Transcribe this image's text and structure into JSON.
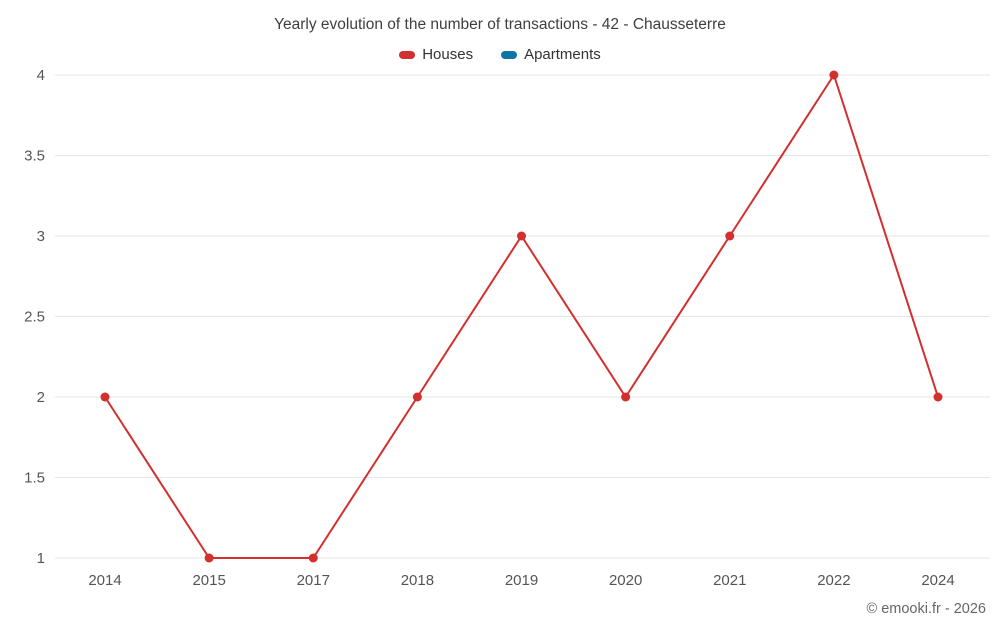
{
  "chart": {
    "footer": "© emooki.fr - 2026"
  },
  "chart_data": {
    "type": "line",
    "title": "Yearly evolution of the number of transactions - 42 - Chausseterre",
    "categories": [
      "2014",
      "2015",
      "2017",
      "2018",
      "2019",
      "2020",
      "2021",
      "2022",
      "2024"
    ],
    "series": [
      {
        "name": "Houses",
        "color": "#d32f2f",
        "values": [
          2,
          1,
          1,
          2,
          3,
          2,
          3,
          4,
          2
        ]
      },
      {
        "name": "Apartments",
        "color": "#0f74a8",
        "values": []
      }
    ],
    "xlabel": "",
    "ylabel": "",
    "ylim": [
      1,
      4
    ],
    "yticks": [
      1,
      1.5,
      2,
      2.5,
      3,
      3.5,
      4
    ],
    "grid": true,
    "legend_position": "top",
    "grid_color": "#e6e6e6",
    "tick_color": "#555555"
  }
}
